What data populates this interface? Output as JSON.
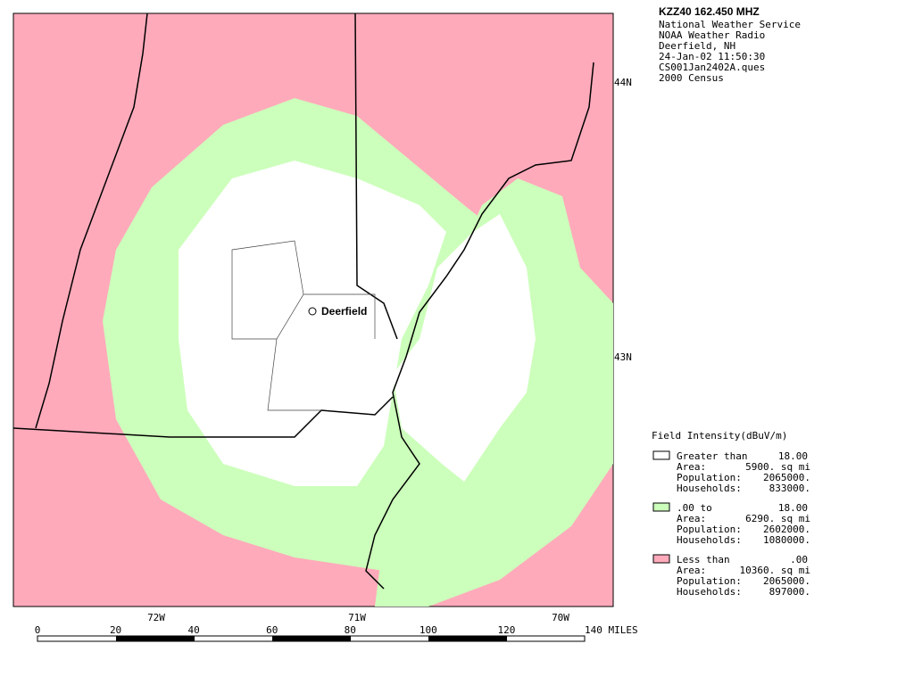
{
  "header": {
    "title": "KZZ40 162.450 MHZ",
    "lines": [
      "National Weather Service",
      "NOAA Weather Radio",
      "Deerfield, NH",
      "24-Jan-02  11:50:30",
      "CS001Jan2402A.ques",
      "2000 Census"
    ]
  },
  "map": {
    "city": "Deerfield",
    "latitude_labels": [
      "44N",
      "43N"
    ],
    "longitude_labels": [
      "72W",
      "71W",
      "70W"
    ],
    "scale": {
      "labels": [
        "0",
        "20",
        "40",
        "60",
        "80",
        "100",
        "120",
        "140 MILES"
      ]
    }
  },
  "legend": {
    "title": "Field Intensity(dBuV/m)",
    "entries": [
      {
        "label": "Greater than",
        "threshold": "18.00",
        "area_label": "Area:",
        "area": "5900. sq mi",
        "population_label": "Population:",
        "population": "2065000.",
        "households_label": "Households:",
        "households": "833000."
      },
      {
        "label": ".00 to",
        "threshold": "18.00",
        "area_label": "Area:",
        "area": "6290. sq mi",
        "population_label": "Population:",
        "population": "2602000.",
        "households_label": "Households:",
        "households": "1080000."
      },
      {
        "label": "Less than",
        "threshold": ".00",
        "area_label": "Area:",
        "area": "10360. sq mi",
        "population_label": "Population:",
        "population": "2065000.",
        "households_label": "Households:",
        "households": "897000."
      }
    ]
  }
}
